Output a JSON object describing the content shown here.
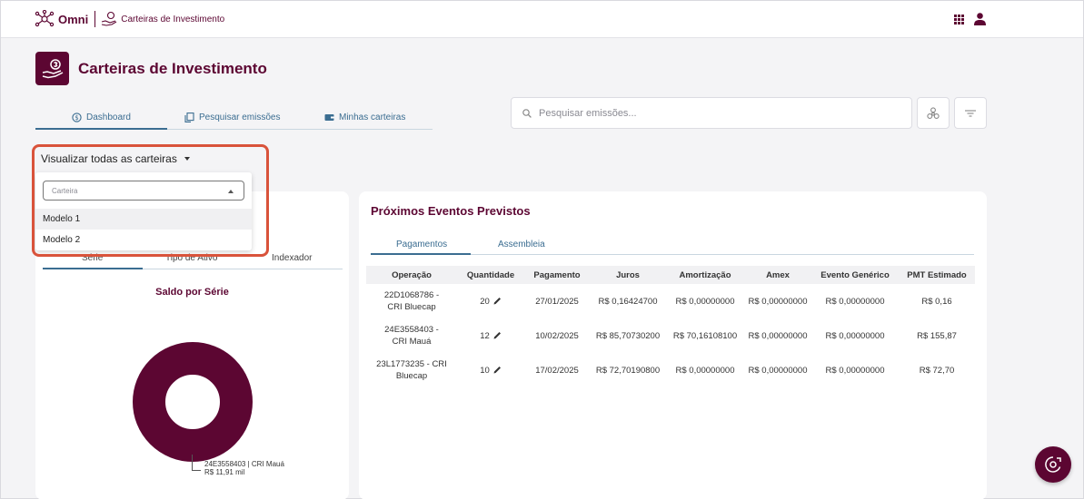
{
  "topbar": {
    "brand": "Omni",
    "app_name": "Carteiras de Investimento",
    "icons": [
      "network-logo-icon",
      "hand-coin-icon",
      "apps-grid-icon",
      "user-icon"
    ]
  },
  "page": {
    "title": "Carteiras de Investimento"
  },
  "main_tabs": [
    {
      "label": "Dashboard",
      "icon": "dashboard-icon"
    },
    {
      "label": "Pesquisar emissões",
      "icon": "copy-icon"
    },
    {
      "label": "Minhas carteiras",
      "icon": "wallet-icon"
    }
  ],
  "search": {
    "placeholder": "Pesquisar emissões...",
    "value": ""
  },
  "portfolio_select": {
    "selected": "Visualizar todas as carteiras",
    "filter_placeholder": "Carteira",
    "options": [
      "Modelo 1",
      "Modelo 2"
    ]
  },
  "left_card": {
    "tabs": [
      "Série",
      "Tipo de Ativo",
      "Indexador"
    ],
    "chart_title": "Saldo por Série",
    "chart_data": {
      "type": "pie",
      "title": "Saldo por Série",
      "labels": [
        "24E3558403 | CRI Mauá"
      ],
      "values": [
        11.91
      ],
      "value_labels": [
        "R$ 11,91 mil"
      ],
      "color": "#5c0632",
      "donut": true
    }
  },
  "events": {
    "title": "Próximos Eventos Previstos",
    "tabs": [
      "Pagamentos",
      "Assembleia"
    ],
    "columns": [
      "Operação",
      "Quantidade",
      "Pagamento",
      "Juros",
      "Amortização",
      "Amex",
      "Evento Genérico",
      "PMT Estimado"
    ],
    "rows": [
      {
        "op1": "22D1068786 -",
        "op2": "CRI Bluecap",
        "qty": "20",
        "pay": "27/01/2025",
        "juros": "R$ 0,16424700",
        "amort": "R$ 0,00000000",
        "amex": "R$ 0,00000000",
        "evento": "R$ 0,00000000",
        "pmt": "R$ 0,16"
      },
      {
        "op1": "24E3558403 -",
        "op2": "CRI Mauá",
        "qty": "12",
        "pay": "10/02/2025",
        "juros": "R$ 85,70730200",
        "amort": "R$ 70,16108100",
        "amex": "R$ 0,00000000",
        "evento": "R$ 0,00000000",
        "pmt": "R$ 155,87"
      },
      {
        "op1": "23L1773235 - CRI",
        "op2": "Bluecap",
        "qty": "10",
        "pay": "17/02/2025",
        "juros": "R$ 72,70190800",
        "amort": "R$ 0,00000000",
        "amex": "R$ 0,00000000",
        "evento": "R$ 0,00000000",
        "pmt": "R$ 72,70"
      }
    ]
  },
  "colors": {
    "brand": "#5c0632",
    "tab_blue": "#3b6d91",
    "highlight": "#d9533b"
  }
}
